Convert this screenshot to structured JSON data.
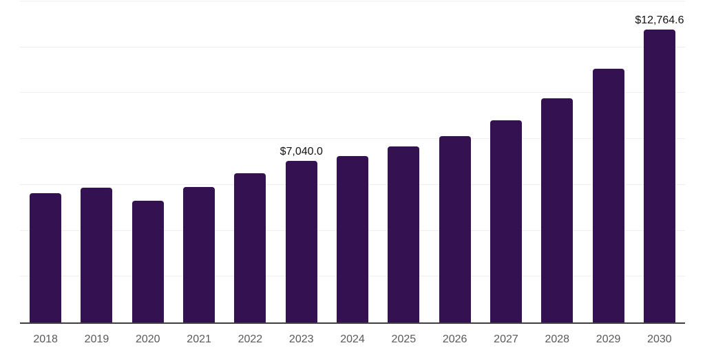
{
  "chart_data": {
    "type": "bar",
    "title": "",
    "xlabel": "",
    "ylabel": "",
    "categories": [
      "2018",
      "2019",
      "2020",
      "2021",
      "2022",
      "2023",
      "2024",
      "2025",
      "2026",
      "2027",
      "2028",
      "2029",
      "2030"
    ],
    "values": [
      5630,
      5870,
      5300,
      5900,
      6510,
      7040,
      7270,
      7680,
      8120,
      8800,
      9780,
      11060,
      12764.6
    ],
    "value_labels": [
      "",
      "",
      "",
      "",
      "",
      "$7,040.0",
      "",
      "",
      "",
      "",
      "",
      "",
      "$12,764.6"
    ],
    "ylim": [
      0,
      14000
    ],
    "gridline_step": 2000,
    "grid": "horizontal",
    "legend": "none",
    "colors": {
      "bar": "#341150",
      "grid": "#efedef",
      "axis": "#3f3f3f",
      "value_label": "#111111",
      "tick_label": "#595959",
      "background": "#ffffff"
    }
  }
}
